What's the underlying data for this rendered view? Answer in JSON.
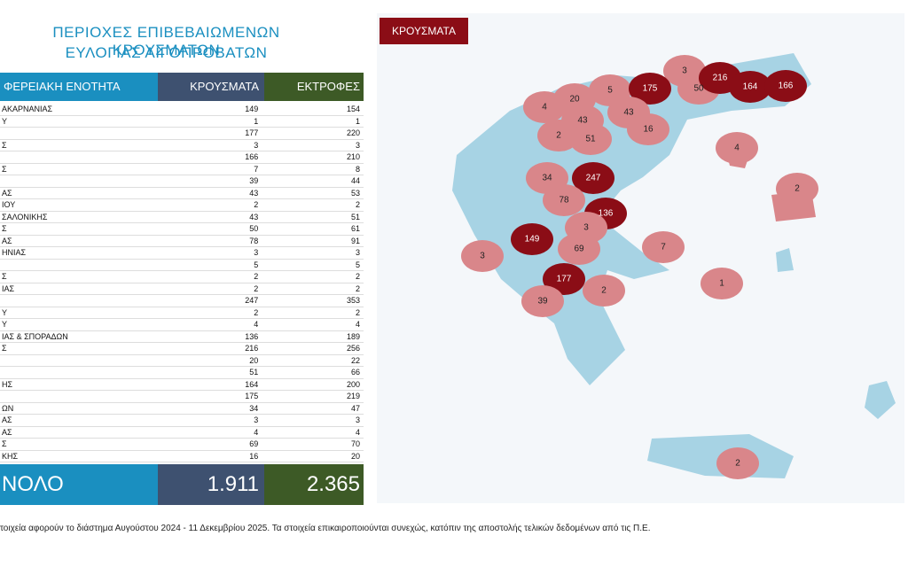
{
  "header": {
    "title_line1": "ΠΕΡΙΟΧΕΣ ΕΠΙΒΕΒΑΙΩΜΕΝΩΝ ΚΡΟΥΣΜΑΤΩΝ",
    "title_line2": "ΕΥΛΟΓΙΑΣ ΑΙΓΟΠΡΟΒΑΤΩΝ"
  },
  "table": {
    "columns": [
      "ΦΕΡΕΙΑΚΗ ΕΝΟΤΗΤΑ",
      "ΚΡΟΥΣΜΑΤΑ",
      "ΕΚΤΡΟΦΕΣ"
    ],
    "rows": [
      [
        "ΑΚΑΡΝΑΝΙΑΣ",
        149,
        154
      ],
      [
        "Υ",
        1,
        1
      ],
      [
        null,
        177,
        220
      ],
      [
        "Σ",
        3,
        3
      ],
      [
        null,
        166,
        210
      ],
      [
        "Σ",
        7,
        8
      ],
      [
        null,
        39,
        44
      ],
      [
        "ΑΣ",
        43,
        53
      ],
      [
        "ΙΟΥ",
        2,
        2
      ],
      [
        "ΣΑΛΟΝΙΚΗΣ",
        43,
        51
      ],
      [
        "Σ",
        50,
        61
      ],
      [
        "ΑΣ",
        78,
        91
      ],
      [
        "ΗΝΙΑΣ",
        3,
        3
      ],
      [
        null,
        5,
        5
      ],
      [
        "Σ",
        2,
        2
      ],
      [
        "ΙΑΣ",
        2,
        2
      ],
      [
        null,
        247,
        353
      ],
      [
        "Υ",
        2,
        2
      ],
      [
        "Υ",
        4,
        4
      ],
      [
        "ΙΑΣ & ΣΠΟΡΑΔΩΝ",
        136,
        189
      ],
      [
        "Σ",
        216,
        256
      ],
      [
        null,
        20,
        22
      ],
      [
        null,
        51,
        66
      ],
      [
        "ΗΣ",
        164,
        200
      ],
      [
        null,
        175,
        219
      ],
      [
        "ΩΝ",
        34,
        47
      ],
      [
        "ΑΣ",
        3,
        3
      ],
      [
        "ΑΣ",
        4,
        4
      ],
      [
        "Σ",
        69,
        70
      ],
      [
        "ΚΗΣ",
        16,
        20
      ]
    ],
    "total": [
      "ΝΟΛΟ",
      "1.911",
      "2.365"
    ]
  },
  "map": {
    "legend": "ΚΡΟΥΣΜΑΤΑ",
    "labels": [
      3,
      20,
      5,
      175,
      50,
      216,
      164,
      166,
      4,
      43,
      43,
      2,
      51,
      16,
      4,
      34,
      247,
      78,
      136,
      2,
      3,
      149,
      69,
      7,
      3,
      177,
      2,
      39,
      1,
      2
    ]
  },
  "footnote": "τοιχεία αφορούν το διάστημα Αυγούστου 2024 - 11 Δεκεμβρίου 2025. Τα στοιχεία επικαιροποιούνται συνεχώς, κατόπιν της αποστολής τελικών δεδομένων από τις Π.Ε."
}
